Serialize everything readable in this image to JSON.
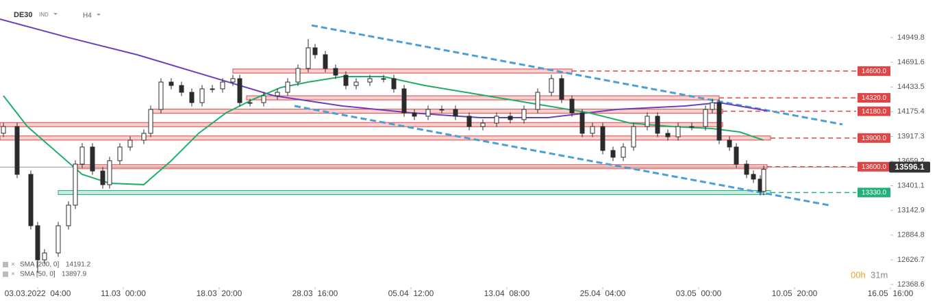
{
  "chart_data": {
    "type": "candlestick",
    "symbol": "DE30",
    "market": "IND",
    "interval": "H4",
    "color": "#2b2b2b",
    "x": [
      1,
      5,
      9,
      11,
      13,
      17,
      20,
      22,
      24,
      27,
      30,
      32,
      35,
      38,
      42,
      44,
      47,
      50,
      53,
      56,
      59,
      62,
      65,
      68,
      70,
      73,
      77,
      81,
      84,
      87,
      90,
      92,
      95,
      98,
      101,
      104,
      108,
      112,
      115,
      118,
      121,
      125,
      129,
      133,
      137,
      141,
      145,
      149,
      153,
      157,
      161,
      164,
      167,
      170,
      173,
      176,
      179,
      182,
      185,
      189,
      192,
      195,
      198,
      202,
      206,
      208,
      210,
      213,
      215,
      218,
      220,
      222,
      223
    ],
    "open": [
      13950,
      14020,
      13520,
      12983,
      12626,
      12698,
      12983,
      13198,
      13627,
      13806,
      13555,
      13412,
      13663,
      13806,
      13877,
      13949,
      14199,
      14485,
      14449,
      14378,
      14270,
      14414,
      14414,
      14485,
      14521,
      14270,
      14270,
      14342,
      14378,
      14485,
      14628,
      14843,
      14771,
      14628,
      14557,
      14449,
      14485,
      14521,
      14521,
      14414,
      14163,
      14128,
      14199,
      14199,
      14128,
      14020,
      14056,
      14128,
      14092,
      14199,
      14378,
      14521,
      14306,
      14163,
      13949,
      14020,
      13770,
      13699,
      13806,
      14020,
      14128,
      13949,
      13913,
      14020,
      14020,
      14199,
      14270,
      13877,
      13806,
      13627,
      13520,
      13470,
      13342
    ],
    "high": [
      14060,
      14060,
      13560,
      13023,
      12738,
      13023,
      13238,
      13667,
      13846,
      13846,
      13595,
      13703,
      13846,
      13917,
      13989,
      14239,
      14525,
      14525,
      14489,
      14418,
      14454,
      14454,
      14525,
      14561,
      14561,
      14310,
      14382,
      14418,
      14525,
      14668,
      14935,
      14883,
      14811,
      14668,
      14597,
      14525,
      14561,
      14561,
      14561,
      14454,
      14203,
      14239,
      14239,
      14239,
      14168,
      14096,
      14168,
      14168,
      14239,
      14418,
      14561,
      14561,
      14346,
      14203,
      14060,
      14060,
      13810,
      13846,
      14060,
      14168,
      14168,
      13989,
      14060,
      14060,
      14239,
      14310,
      14310,
      13917,
      13846,
      13667,
      13560,
      13510,
      13612
    ],
    "low": [
      13910,
      13480,
      12943,
      12490,
      12586,
      12658,
      12943,
      13158,
      13587,
      13515,
      13372,
      13372,
      13623,
      13766,
      13837,
      13909,
      14159,
      14409,
      14338,
      14230,
      14230,
      14374,
      14374,
      14445,
      14230,
      14230,
      14230,
      14302,
      14338,
      14445,
      14588,
      14731,
      14588,
      14517,
      14409,
      14409,
      14445,
      14481,
      14374,
      14123,
      14088,
      14088,
      14159,
      14088,
      13980,
      13980,
      14016,
      14052,
      14052,
      14159,
      14338,
      14266,
      14123,
      13909,
      13909,
      13730,
      13659,
      13659,
      13766,
      13980,
      13909,
      13873,
      13873,
      13980,
      13980,
      14159,
      13837,
      13766,
      13587,
      13480,
      13430,
      13300,
      13302
    ],
    "close": [
      14020,
      13520,
      12983,
      12626,
      12698,
      12983,
      13198,
      13627,
      13806,
      13555,
      13412,
      13663,
      13806,
      13877,
      13949,
      14199,
      14485,
      14449,
      14378,
      14270,
      14414,
      14414,
      14485,
      14521,
      14270,
      14270,
      14342,
      14378,
      14485,
      14628,
      14843,
      14771,
      14628,
      14557,
      14449,
      14485,
      14521,
      14521,
      14414,
      14163,
      14128,
      14199,
      14199,
      14128,
      14020,
      14056,
      14128,
      14092,
      14199,
      14378,
      14521,
      14306,
      14163,
      13949,
      14020,
      13770,
      13699,
      13806,
      14020,
      14128,
      13949,
      13913,
      14020,
      14020,
      14199,
      14270,
      13877,
      13806,
      13627,
      13520,
      13470,
      13342,
      13572
    ],
    "series": [
      {
        "name": "SMA [200, 0]",
        "legend_value": 14191.2,
        "color": "#6a3fbf",
        "x": [
          0,
          20,
          40,
          60,
          80,
          100,
          120,
          140,
          160,
          180,
          200,
          210,
          224
        ],
        "values": [
          15143,
          14950,
          14771,
          14557,
          14342,
          14235,
          14163,
          14113,
          14113,
          14199,
          14235,
          14270,
          14185
        ]
      },
      {
        "name": "SMA [50, 0]",
        "legend_value": 13897.9,
        "color": "#1fae6a",
        "x": [
          1,
          8,
          16,
          24,
          32,
          42,
          50,
          58,
          66,
          74,
          82,
          90,
          100,
          112,
          124,
          136,
          148,
          160,
          172,
          184,
          196,
          208,
          216,
          223
        ],
        "values": [
          14342,
          14020,
          13770,
          13520,
          13427,
          13413,
          13663,
          13949,
          14163,
          14306,
          14428,
          14485,
          14542,
          14542,
          14449,
          14378,
          14306,
          14235,
          14163,
          14056,
          14020,
          13999,
          13963,
          13877
        ]
      }
    ],
    "levels": [
      {
        "value": 14600,
        "label": "14600.0",
        "color": "#e04545",
        "zone": [
          68,
          167
        ]
      },
      {
        "value": 14320,
        "label": "14320.0",
        "color": "#e04545",
        "zone": [
          72,
          210
        ]
      },
      {
        "value": 14180,
        "label": "14180.0",
        "color": "#e04545",
        "zone": [
          44,
          211
        ]
      },
      {
        "value": 14040,
        "color": "#e04545",
        "zone": [
          0,
          211
        ]
      },
      {
        "value": 13900,
        "label": "13900.0",
        "color": "#e04545",
        "zone": [
          0,
          225
        ]
      },
      {
        "value": 13600,
        "label": "13600.0",
        "color": "#e04545",
        "zone": [
          22,
          224
        ]
      },
      {
        "value": 13330,
        "label": "13330.0",
        "color": "#22b07a",
        "zone": [
          17,
          225
        ]
      }
    ],
    "trendlines": [
      {
        "color": "#4a9fd8",
        "x": [
          91,
          246
        ],
        "values": [
          15078,
          14042
        ]
      },
      {
        "color": "#4a9fd8",
        "x": [
          86,
          242
        ],
        "values": [
          14235,
          13198
        ]
      }
    ],
    "last_price": 13596.1,
    "xlim": [
      0,
      260
    ],
    "ylim": [
      12340,
      15343
    ],
    "yticks": [
      14949.8,
      14691.6,
      14433.5,
      14175.4,
      13917.3,
      13659.2,
      13401.1,
      13142.9,
      12884.8,
      12626.7,
      12368.6
    ],
    "xticks": [
      {
        "value": 11,
        "label": "03.03.2022  04:00"
      },
      {
        "value": 36,
        "label": "11.03  00:00"
      },
      {
        "value": 64,
        "label": "18.03  20:00"
      },
      {
        "value": 92,
        "label": "28.03  16:00"
      },
      {
        "value": 120,
        "label": "05.04  12:00"
      },
      {
        "value": 148,
        "label": "13.04  08:00"
      },
      {
        "value": 176,
        "label": "25.04  04:00"
      },
      {
        "value": 204,
        "label": "03.05  00:00"
      },
      {
        "value": 232,
        "label": "10.05  20:00"
      },
      {
        "value": 260,
        "label": "16.05  16:00"
      }
    ],
    "timer": {
      "hours": "00h",
      "minutes": "31m"
    }
  }
}
